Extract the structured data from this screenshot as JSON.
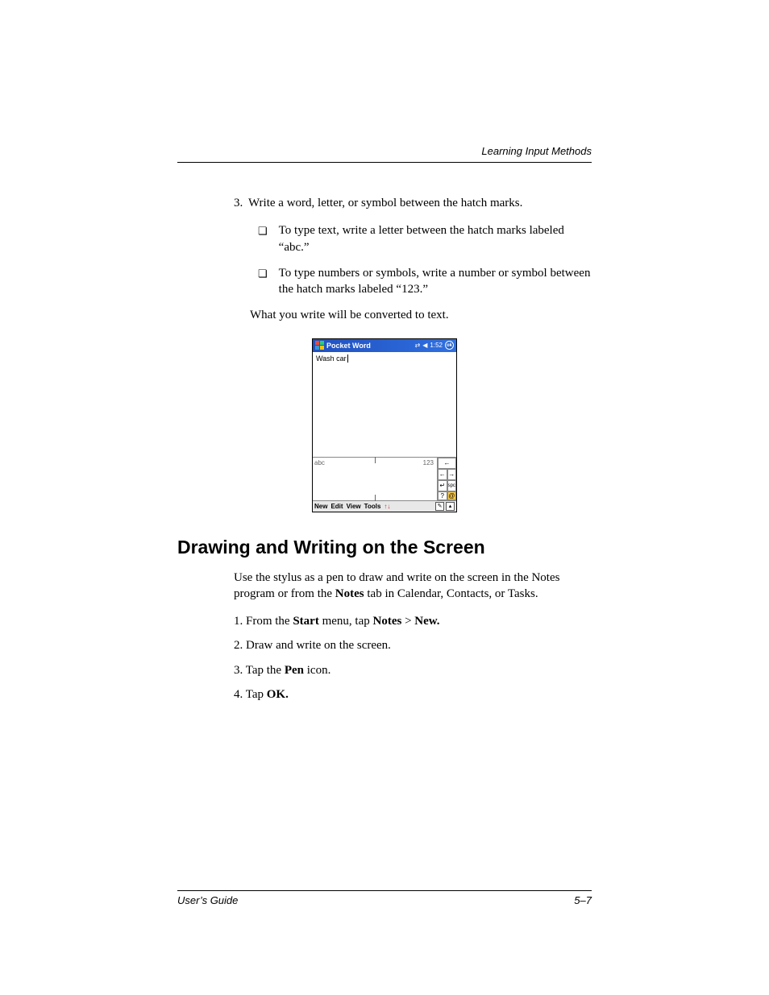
{
  "header": {
    "section": "Learning Input Methods"
  },
  "step3": {
    "num": "3.",
    "text": "Write a word, letter, or symbol between the hatch marks.",
    "bullets": [
      "To type text, write a letter between the hatch marks labeled “abc.”",
      "To type numbers or symbols, write a number or symbol between the hatch marks labeled “123.”"
    ],
    "after": "What you write will be converted to text."
  },
  "screenshot": {
    "title": "Pocket Word",
    "time": "1:52",
    "ok": "ok",
    "doc_text": "Wash car",
    "abc": "abc",
    "num": "123",
    "keys": {
      "bksp": "←",
      "left": "←",
      "right": "→",
      "enter": "↵",
      "spc": "spc",
      "help": "?",
      "at": "@"
    },
    "menu": {
      "new": "New",
      "edit": "Edit",
      "view": "View",
      "tools": "Tools"
    },
    "pen": "✎",
    "up": "▴"
  },
  "drawing": {
    "heading": "Drawing and Writing on the Screen",
    "intro_pre": "Use the stylus as a pen to draw and write on the screen in the Notes program or from the ",
    "intro_bold": "Notes",
    "intro_post": " tab in Calendar, Contacts, or Tasks.",
    "steps": [
      {
        "n": "1.",
        "pre": "From the ",
        "b1": "Start",
        "mid": " menu, tap ",
        "b2": "Notes",
        "mid2": " > ",
        "b3": "New."
      },
      {
        "n": "2.",
        "pre": "Draw and write on the screen."
      },
      {
        "n": "3.",
        "pre": "Tap the ",
        "b1": "Pen",
        "mid": " icon."
      },
      {
        "n": "4.",
        "pre": "Tap ",
        "b1": "OK."
      }
    ]
  },
  "footer": {
    "left": "User’s Guide",
    "right": "5–7"
  }
}
